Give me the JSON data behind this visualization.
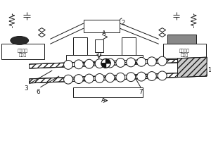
{
  "lc": "#1a1a1a",
  "lw": 0.7,
  "label_2": "2",
  "label_A": "A",
  "label_1": "1",
  "label_3": "3",
  "label_6": "6",
  "label_7": "7",
  "left_text1": "发射超声",
  "left_text2": "波探头",
  "right_text1": "接收超声",
  "right_text2": "波探头"
}
